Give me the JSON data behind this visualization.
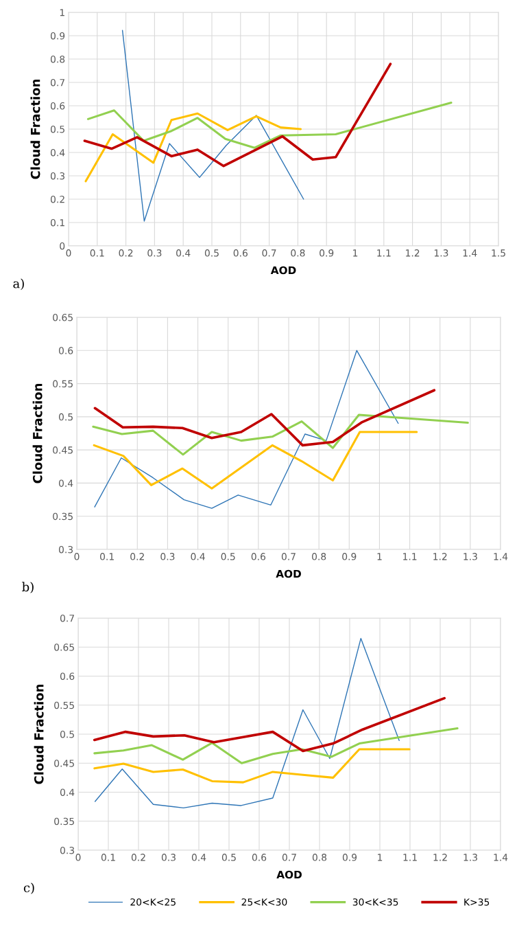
{
  "chart_data": [
    {
      "type": "line",
      "xlabel": "AOD",
      "ylabel": "Cloud Fraction",
      "annotations": [
        "a)"
      ],
      "xlim": [
        0,
        1.5
      ],
      "xticks": [
        0,
        0.1,
        0.2,
        0.3,
        0.4,
        0.5,
        0.6,
        0.7,
        0.8,
        0.9,
        1,
        1.1,
        1.2,
        1.3,
        1.4,
        1.5
      ],
      "ylim": [
        0,
        1
      ],
      "yticks": [
        0,
        0.1,
        0.2,
        0.3,
        0.4,
        0.5,
        0.6,
        0.7,
        0.8,
        0.9,
        1
      ],
      "grid": true,
      "legend": false,
      "series": [
        {
          "color": "#2e75b6",
          "x": [
            0.188,
            0.264,
            0.352,
            0.457,
            0.55,
            0.655,
            0.82
          ],
          "values": [
            0.923,
            0.106,
            0.438,
            0.293,
            0.43,
            0.559,
            0.2
          ]
        },
        {
          "color": "#ffc000",
          "x": [
            0.06,
            0.154,
            0.296,
            0.359,
            0.45,
            0.555,
            0.655,
            0.74,
            0.81
          ],
          "values": [
            0.277,
            0.478,
            0.356,
            0.539,
            0.567,
            0.496,
            0.555,
            0.507,
            0.5
          ]
        },
        {
          "color": "#92d050",
          "x": [
            0.068,
            0.159,
            0.262,
            0.359,
            0.45,
            0.547,
            0.649,
            0.74,
            0.932,
            1.335
          ],
          "values": [
            0.543,
            0.58,
            0.45,
            0.492,
            0.548,
            0.458,
            0.42,
            0.473,
            0.478,
            0.613
          ]
        },
        {
          "color": "#c00000",
          "x": [
            0.056,
            0.15,
            0.239,
            0.359,
            0.45,
            0.541,
            0.746,
            0.852,
            0.932,
            1.123
          ],
          "values": [
            0.45,
            0.416,
            0.465,
            0.384,
            0.412,
            0.342,
            0.469,
            0.37,
            0.38,
            0.779
          ]
        }
      ]
    },
    {
      "type": "line",
      "xlabel": "AOD",
      "ylabel": "Cloud Fraction",
      "annotations": [
        "b)"
      ],
      "xlim": [
        0,
        1.4
      ],
      "xticks": [
        0,
        0.1,
        0.2,
        0.3,
        0.4,
        0.5,
        0.6,
        0.7,
        0.8,
        0.9,
        1,
        1.1,
        1.2,
        1.3,
        1.4
      ],
      "ylim": [
        0.3,
        0.65
      ],
      "yticks": [
        0.3,
        0.35,
        0.4,
        0.45,
        0.5,
        0.55,
        0.6,
        0.65
      ],
      "grid": true,
      "legend": false,
      "series": [
        {
          "color": "#2e75b6",
          "x": [
            0.059,
            0.147,
            0.252,
            0.354,
            0.446,
            0.533,
            0.641,
            0.754,
            0.824,
            0.925,
            1.062
          ],
          "values": [
            0.364,
            0.438,
            0.408,
            0.375,
            0.362,
            0.382,
            0.367,
            0.474,
            0.464,
            0.6,
            0.49
          ]
        },
        {
          "color": "#ffc000",
          "x": [
            0.057,
            0.154,
            0.246,
            0.349,
            0.446,
            0.646,
            0.743,
            0.846,
            0.935,
            1.123
          ],
          "values": [
            0.457,
            0.441,
            0.397,
            0.422,
            0.392,
            0.457,
            0.433,
            0.404,
            0.477,
            0.477
          ]
        },
        {
          "color": "#92d050",
          "x": [
            0.054,
            0.149,
            0.252,
            0.351,
            0.446,
            0.543,
            0.646,
            0.743,
            0.846,
            0.932,
            1.292
          ],
          "values": [
            0.485,
            0.474,
            0.479,
            0.443,
            0.477,
            0.464,
            0.47,
            0.493,
            0.453,
            0.503,
            0.491
          ]
        },
        {
          "color": "#c00000",
          "x": [
            0.06,
            0.152,
            0.252,
            0.349,
            0.446,
            0.543,
            0.643,
            0.746,
            0.846,
            0.943,
            1.181
          ],
          "values": [
            0.513,
            0.484,
            0.485,
            0.483,
            0.468,
            0.477,
            0.504,
            0.457,
            0.462,
            0.492,
            0.54
          ]
        }
      ]
    },
    {
      "type": "line",
      "xlabel": "AOD",
      "ylabel": "Cloud Fraction",
      "annotations": [
        "c)"
      ],
      "xlim": [
        0,
        1.4
      ],
      "xticks": [
        0,
        0.1,
        0.2,
        0.3,
        0.4,
        0.5,
        0.6,
        0.7,
        0.8,
        0.9,
        1,
        1.1,
        1.2,
        1.3,
        1.4
      ],
      "ylim": [
        0.3,
        0.7
      ],
      "yticks": [
        0.3,
        0.35,
        0.4,
        0.45,
        0.5,
        0.55,
        0.6,
        0.65,
        0.7
      ],
      "grid": true,
      "legend": "bottom",
      "series": [
        {
          "name": "20<K<25",
          "color": "#2e75b6",
          "x": [
            0.056,
            0.146,
            0.249,
            0.349,
            0.444,
            0.54,
            0.645,
            0.745,
            0.834,
            0.937,
            1.064
          ],
          "values": [
            0.384,
            0.44,
            0.379,
            0.373,
            0.381,
            0.377,
            0.39,
            0.542,
            0.458,
            0.665,
            0.489
          ]
        },
        {
          "name": "25<K<30",
          "color": "#ffc000",
          "x": [
            0.054,
            0.15,
            0.249,
            0.347,
            0.444,
            0.547,
            0.645,
            0.745,
            0.845,
            0.932,
            1.098
          ],
          "values": [
            0.441,
            0.449,
            0.435,
            0.439,
            0.419,
            0.417,
            0.435,
            0.43,
            0.425,
            0.474,
            0.474
          ]
        },
        {
          "name": "30<K<35",
          "color": "#92d050",
          "x": [
            0.054,
            0.15,
            0.244,
            0.347,
            0.444,
            0.542,
            0.645,
            0.742,
            0.84,
            0.932,
            1.257
          ],
          "values": [
            0.467,
            0.472,
            0.481,
            0.456,
            0.485,
            0.45,
            0.466,
            0.474,
            0.461,
            0.484,
            0.51
          ]
        },
        {
          "name": "K>35",
          "color": "#c00000",
          "x": [
            0.054,
            0.157,
            0.249,
            0.352,
            0.45,
            0.547,
            0.645,
            0.745,
            0.845,
            0.943,
            1.214
          ],
          "values": [
            0.49,
            0.504,
            0.496,
            0.498,
            0.486,
            0.495,
            0.504,
            0.471,
            0.484,
            0.508,
            0.562
          ]
        }
      ]
    }
  ]
}
